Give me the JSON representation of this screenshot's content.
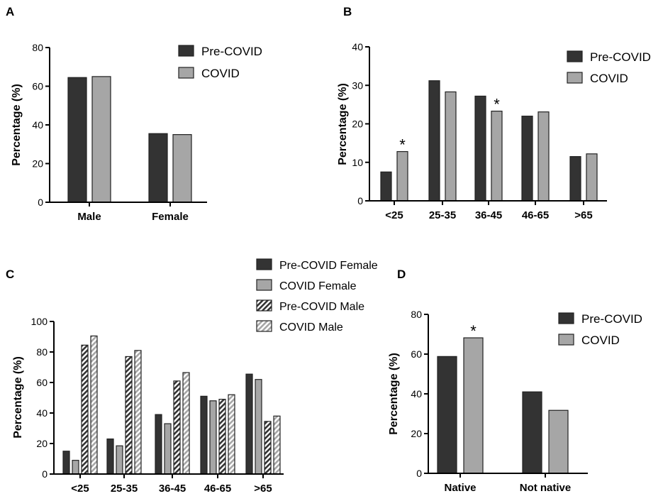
{
  "figure": {
    "colors": {
      "pre": "#333333",
      "covid": "#a6a6a6",
      "axis": "#000000",
      "outline": "#222222"
    }
  },
  "chart_data": [
    {
      "panel": "A",
      "type": "bar",
      "categories": [
        "Male",
        "Female"
      ],
      "series": [
        {
          "name": "Pre-COVID",
          "values": [
            64.5,
            35.5
          ]
        },
        {
          "name": "COVID",
          "values": [
            65,
            35
          ]
        }
      ],
      "ylabel": "Percentage (%)",
      "xlabel": "",
      "ylim": [
        0,
        80
      ],
      "yticks": [
        "0",
        "20",
        "40",
        "60",
        "80"
      ],
      "legend": "top-right",
      "annotations": []
    },
    {
      "panel": "B",
      "type": "bar",
      "categories": [
        "<25",
        "25-35",
        "36-45",
        "46-65",
        ">65"
      ],
      "series": [
        {
          "name": "Pre-COVID",
          "values": [
            7.5,
            31.2,
            27.2,
            22,
            11.5
          ]
        },
        {
          "name": "COVID",
          "values": [
            12.8,
            28.3,
            23.3,
            23.1,
            12.2
          ]
        }
      ],
      "ylabel": "Percentage (%)",
      "xlabel": "",
      "ylim": [
        0,
        40
      ],
      "yticks": [
        "0",
        "10",
        "20",
        "30",
        "40"
      ],
      "legend": "top-right",
      "annotations": [
        {
          "text": "*",
          "category": 0,
          "series": 1
        },
        {
          "text": "*",
          "category": 2,
          "series": 1
        }
      ]
    },
    {
      "panel": "C",
      "type": "bar",
      "categories": [
        "<25",
        "25-35",
        "36-45",
        "46-65",
        ">65"
      ],
      "series": [
        {
          "name": "Pre-COVID Female",
          "values": [
            15,
            23,
            39,
            51,
            65.5
          ]
        },
        {
          "name": "COVID Female",
          "values": [
            9,
            18.5,
            33,
            48,
            62
          ]
        },
        {
          "name": "Pre-COVID Male",
          "values": [
            84.5,
            77,
            61,
            49,
            34.5
          ]
        },
        {
          "name": "COVID Male",
          "values": [
            90.5,
            81,
            66.5,
            52,
            38
          ]
        }
      ],
      "ylabel": "Percentage (%)",
      "xlabel": "",
      "ylim": [
        0,
        100
      ],
      "yticks": [
        "0",
        "20",
        "40",
        "60",
        "80",
        "100"
      ],
      "legend": "top-right",
      "annotations": []
    },
    {
      "panel": "D",
      "type": "bar",
      "categories": [
        "Native",
        "Not native"
      ],
      "series": [
        {
          "name": "Pre-COVID",
          "values": [
            58.8,
            41
          ]
        },
        {
          "name": "COVID",
          "values": [
            68.2,
            31.7
          ]
        }
      ],
      "ylabel": "Percentage (%)",
      "xlabel": "",
      "ylim": [
        0,
        80
      ],
      "yticks": [
        "0",
        "20",
        "40",
        "60",
        "80"
      ],
      "legend": "top-right",
      "annotations": [
        {
          "text": "*",
          "category": 0,
          "series": 1
        }
      ]
    }
  ]
}
